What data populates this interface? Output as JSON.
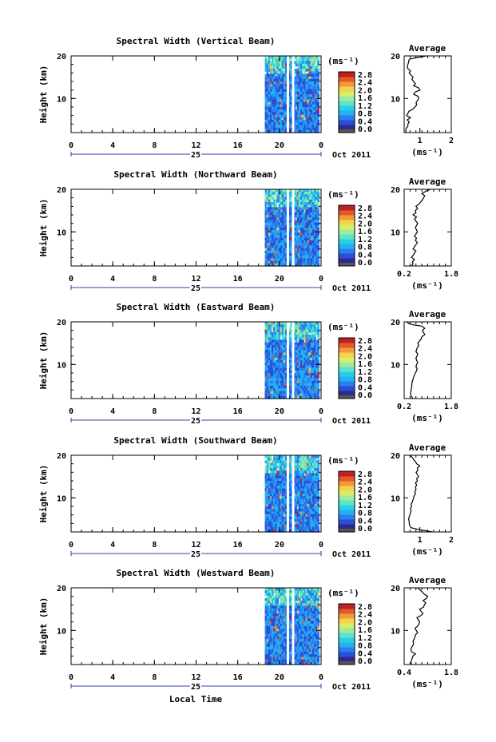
{
  "figure": {
    "common": {
      "ylabel": "Height (km)",
      "x_ticks": [
        "0",
        "4",
        "8",
        "12",
        "16",
        "20",
        "0"
      ],
      "day_label": "25",
      "date_label": "Oct 2011",
      "unit_label": "(ms⁻¹)",
      "colorbar_ticks": [
        "2.8",
        "2.4",
        "2.0",
        "1.6",
        "1.2",
        "0.8",
        "0.4",
        "0.0"
      ],
      "y_ticks": [
        "20",
        "10"
      ],
      "avg_title": "Average",
      "avg_unit": "(ms⁻¹)",
      "colors": {
        "colormap": [
          "#2d2a8f",
          "#2a4ed6",
          "#2a7ff0",
          "#25b0f2",
          "#27d0e6",
          "#5fe3c8",
          "#9cec9c",
          "#d7ee6b",
          "#f5d34c",
          "#f39a38",
          "#e35a26",
          "#c22020"
        ],
        "background": "#ffffff",
        "axis": "#000000",
        "day_marker": "#2d3fb0"
      }
    },
    "xlabel": "Local Time",
    "panels": [
      {
        "title": "Spectral Width (Vertical Beam)",
        "avg_ticks": [
          "1",
          "2"
        ]
      },
      {
        "title": "Spectral Width (Northward Beam)",
        "avg_ticks": [
          "0.2",
          "1.8"
        ]
      },
      {
        "title": "Spectral Width (Eastward Beam)",
        "avg_ticks": [
          "0.2",
          "1.8"
        ]
      },
      {
        "title": "Spectral Width (Southward Beam)",
        "avg_ticks": [
          "1",
          "2"
        ]
      },
      {
        "title": "Spectral Width (Westward Beam)",
        "avg_ticks": [
          "0.4",
          "1.8"
        ]
      }
    ]
  },
  "chart_data": [
    {
      "type": "heatmap",
      "title": "Spectral Width (Vertical Beam)",
      "ylabel": "Height (km)",
      "xlim": [
        0,
        24
      ],
      "ylim": [
        2,
        20
      ],
      "data_time_range": [
        18.6,
        23.8
      ],
      "colorbar_range": [
        0.0,
        2.8
      ],
      "colorbar_unit": "ms-1"
    },
    {
      "type": "line",
      "title": "Average",
      "xlabel": "(ms-1)",
      "xlim": [
        0.5,
        2.0
      ],
      "ylim": [
        2,
        20
      ],
      "x": [
        0.55,
        0.55,
        0.56,
        0.62,
        0.62,
        0.66,
        0.6,
        0.7,
        0.58,
        0.62,
        0.65,
        0.78,
        0.84,
        0.9,
        0.88,
        0.92,
        0.96,
        0.95,
        0.8,
        0.85,
        1.0,
        0.96,
        0.8,
        0.86,
        0.8,
        0.75,
        0.78,
        0.72,
        0.66,
        0.7,
        0.62,
        0.6,
        0.62,
        0.64,
        0.65,
        0.7,
        0.9,
        1.2
      ],
      "y": [
        2.0,
        2.5,
        3.0,
        3.5,
        4.0,
        4.5,
        5.0,
        5.5,
        6.0,
        6.5,
        7.0,
        7.5,
        8.0,
        8.5,
        9.0,
        9.5,
        10.0,
        10.5,
        11.0,
        11.5,
        12.0,
        12.5,
        13.0,
        13.5,
        14.0,
        14.5,
        15.0,
        15.5,
        16.0,
        16.5,
        17.0,
        17.5,
        18.0,
        18.5,
        19.0,
        19.3,
        19.6,
        20.0
      ]
    },
    {
      "type": "heatmap",
      "title": "Spectral Width (Northward Beam)",
      "ylabel": "Height (km)",
      "xlim": [
        0,
        24
      ],
      "ylim": [
        2,
        20
      ],
      "data_time_range": [
        18.6,
        23.8
      ],
      "colorbar_range": [
        0.0,
        2.8
      ],
      "colorbar_unit": "ms-1"
    },
    {
      "type": "line",
      "title": "Average",
      "xlabel": "(ms-1)",
      "xlim": [
        0.2,
        1.8
      ],
      "ylim": [
        2,
        20
      ],
      "x": [
        0.45,
        0.5,
        0.48,
        0.55,
        0.45,
        0.5,
        0.55,
        0.6,
        0.5,
        0.55,
        0.6,
        0.65,
        0.58,
        0.62,
        0.55,
        0.6,
        0.65,
        0.62,
        0.58,
        0.62,
        0.66,
        0.6,
        0.55,
        0.62,
        0.5,
        0.6,
        0.58,
        0.66,
        0.6,
        0.7,
        0.76,
        0.82,
        0.86,
        0.9,
        0.8,
        0.88,
        0.95,
        1.1
      ],
      "y": [
        2.0,
        2.5,
        3.0,
        3.5,
        4.0,
        4.5,
        5.0,
        5.5,
        6.0,
        6.5,
        7.0,
        7.5,
        8.0,
        8.5,
        9.0,
        9.5,
        10.0,
        10.5,
        11.0,
        11.5,
        12.0,
        12.5,
        13.0,
        13.5,
        14.0,
        14.5,
        15.0,
        15.5,
        16.0,
        16.5,
        17.0,
        17.5,
        18.0,
        18.5,
        19.0,
        19.3,
        19.6,
        20.0
      ]
    },
    {
      "type": "heatmap",
      "title": "Spectral Width (Eastward Beam)",
      "ylabel": "Height (km)",
      "xlim": [
        0,
        24
      ],
      "ylim": [
        2,
        20
      ],
      "data_time_range": [
        18.6,
        23.8
      ],
      "colorbar_range": [
        0.0,
        2.8
      ],
      "colorbar_unit": "ms-1"
    },
    {
      "type": "line",
      "title": "Average",
      "xlabel": "(ms-1)",
      "xlim": [
        0.2,
        1.8
      ],
      "ylim": [
        2,
        20
      ],
      "x": [
        0.5,
        0.45,
        0.42,
        0.42,
        0.44,
        0.45,
        0.46,
        0.46,
        0.48,
        0.5,
        0.52,
        0.55,
        0.58,
        0.62,
        0.64,
        0.6,
        0.62,
        0.66,
        0.62,
        0.6,
        0.64,
        0.66,
        0.6,
        0.62,
        0.65,
        0.7,
        0.66,
        0.72,
        0.78,
        0.8,
        0.9,
        0.86,
        0.82,
        0.9,
        0.8,
        0.5,
        0.35,
        0.3
      ],
      "y": [
        2.0,
        2.5,
        3.0,
        3.5,
        4.0,
        4.5,
        5.0,
        5.5,
        6.0,
        6.5,
        7.0,
        7.5,
        8.0,
        8.5,
        9.0,
        9.5,
        10.0,
        10.5,
        11.0,
        11.5,
        12.0,
        12.5,
        13.0,
        13.5,
        14.0,
        14.5,
        15.0,
        15.5,
        16.0,
        16.5,
        17.0,
        17.5,
        18.0,
        18.5,
        19.0,
        19.3,
        19.6,
        20.0
      ]
    },
    {
      "type": "heatmap",
      "title": "Spectral Width (Southward Beam)",
      "ylabel": "Height (km)",
      "xlim": [
        0,
        24
      ],
      "ylim": [
        2,
        20
      ],
      "data_time_range": [
        18.6,
        23.8
      ],
      "colorbar_range": [
        0.0,
        2.8
      ],
      "colorbar_unit": "ms-1"
    },
    {
      "type": "line",
      "title": "Average",
      "xlabel": "(ms-1)",
      "xlim": [
        0.5,
        2.0
      ],
      "ylim": [
        2,
        20
      ],
      "x": [
        1.4,
        1.0,
        0.72,
        0.68,
        0.66,
        0.66,
        0.64,
        0.66,
        0.68,
        0.7,
        0.72,
        0.7,
        0.74,
        0.72,
        0.76,
        0.78,
        0.8,
        0.82,
        0.86,
        0.84,
        0.88,
        0.86,
        0.9,
        0.86,
        0.92,
        0.9,
        0.96,
        0.92,
        0.88,
        0.94,
        0.92,
        1.0,
        0.9,
        0.86,
        0.8,
        0.78,
        0.74,
        0.7
      ],
      "y": [
        2.0,
        2.5,
        3.0,
        3.5,
        4.0,
        4.5,
        5.0,
        5.5,
        6.0,
        6.5,
        7.0,
        7.5,
        8.0,
        8.5,
        9.0,
        9.5,
        10.0,
        10.5,
        11.0,
        11.5,
        12.0,
        12.5,
        13.0,
        13.5,
        14.0,
        14.5,
        15.0,
        15.5,
        16.0,
        16.5,
        17.0,
        17.5,
        18.0,
        18.5,
        19.0,
        19.3,
        19.6,
        20.0
      ]
    },
    {
      "type": "heatmap",
      "title": "Spectral Width (Westward Beam)",
      "ylabel": "Height (km)",
      "xlim": [
        0,
        24
      ],
      "ylim": [
        2,
        20
      ],
      "data_time_range": [
        18.6,
        23.8
      ],
      "colorbar_range": [
        0.0,
        2.8
      ],
      "colorbar_unit": "ms-1"
    },
    {
      "type": "line",
      "title": "Average",
      "xlabel": "(ms-1)",
      "xlim": [
        0.4,
        1.8
      ],
      "ylim": [
        2,
        20
      ],
      "x": [
        0.62,
        0.6,
        0.62,
        0.64,
        0.66,
        0.74,
        0.62,
        0.6,
        0.62,
        0.66,
        0.68,
        0.66,
        0.7,
        0.72,
        0.74,
        0.8,
        0.76,
        0.72,
        0.8,
        0.84,
        0.86,
        0.82,
        0.78,
        0.9,
        0.96,
        0.9,
        0.86,
        0.98,
        1.0,
        1.04,
        0.96,
        1.06,
        1.1,
        1.0,
        0.94,
        0.9,
        0.86,
        0.8
      ],
      "y": [
        2.0,
        2.5,
        3.0,
        3.5,
        4.0,
        4.5,
        5.0,
        5.5,
        6.0,
        6.5,
        7.0,
        7.5,
        8.0,
        8.5,
        9.0,
        9.5,
        10.0,
        10.5,
        11.0,
        11.5,
        12.0,
        12.5,
        13.0,
        13.5,
        14.0,
        14.5,
        15.0,
        15.5,
        16.0,
        16.5,
        17.0,
        17.5,
        18.0,
        18.5,
        19.0,
        19.3,
        19.6,
        20.0
      ]
    }
  ]
}
